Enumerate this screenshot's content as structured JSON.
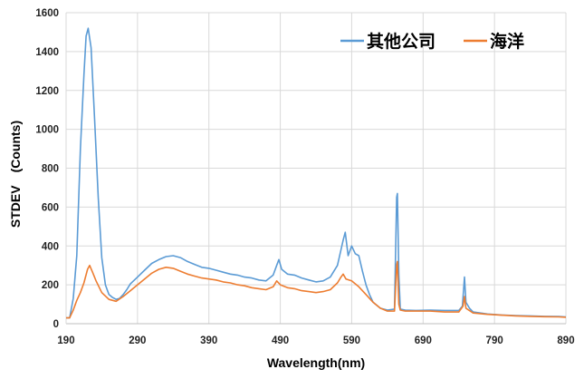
{
  "chart_data": {
    "type": "line",
    "title": "",
    "xlabel": "Wavelength(nm)",
    "ylabel": "STDEV　(Counts)",
    "xlim": [
      190,
      890
    ],
    "ylim": [
      0,
      1600
    ],
    "xticks": [
      190,
      290,
      390,
      490,
      590,
      690,
      790,
      890
    ],
    "yticks": [
      0,
      200,
      400,
      600,
      800,
      1000,
      1200,
      1400,
      1600
    ],
    "grid": true,
    "legend_position": "top-right",
    "series": [
      {
        "name": "其他公司",
        "color": "#5b9bd5",
        "points": [
          [
            190,
            30
          ],
          [
            195,
            30
          ],
          [
            200,
            130
          ],
          [
            205,
            350
          ],
          [
            210,
            900
          ],
          [
            215,
            1280
          ],
          [
            218,
            1480
          ],
          [
            221,
            1520
          ],
          [
            225,
            1420
          ],
          [
            230,
            1050
          ],
          [
            235,
            650
          ],
          [
            240,
            340
          ],
          [
            245,
            200
          ],
          [
            250,
            150
          ],
          [
            255,
            135
          ],
          [
            260,
            125
          ],
          [
            265,
            130
          ],
          [
            270,
            150
          ],
          [
            275,
            175
          ],
          [
            280,
            205
          ],
          [
            290,
            240
          ],
          [
            300,
            275
          ],
          [
            310,
            310
          ],
          [
            320,
            330
          ],
          [
            330,
            345
          ],
          [
            340,
            350
          ],
          [
            350,
            340
          ],
          [
            360,
            320
          ],
          [
            370,
            305
          ],
          [
            380,
            290
          ],
          [
            390,
            285
          ],
          [
            400,
            275
          ],
          [
            410,
            265
          ],
          [
            420,
            255
          ],
          [
            430,
            250
          ],
          [
            440,
            240
          ],
          [
            450,
            235
          ],
          [
            460,
            225
          ],
          [
            470,
            220
          ],
          [
            480,
            250
          ],
          [
            485,
            300
          ],
          [
            488,
            330
          ],
          [
            492,
            280
          ],
          [
            500,
            255
          ],
          [
            510,
            250
          ],
          [
            520,
            235
          ],
          [
            530,
            225
          ],
          [
            540,
            215
          ],
          [
            550,
            220
          ],
          [
            560,
            240
          ],
          [
            570,
            300
          ],
          [
            575,
            380
          ],
          [
            578,
            430
          ],
          [
            581,
            470
          ],
          [
            585,
            350
          ],
          [
            590,
            400
          ],
          [
            595,
            360
          ],
          [
            600,
            350
          ],
          [
            605,
            270
          ],
          [
            610,
            200
          ],
          [
            615,
            150
          ],
          [
            620,
            110
          ],
          [
            630,
            80
          ],
          [
            640,
            70
          ],
          [
            650,
            75
          ],
          [
            653,
            650
          ],
          [
            654,
            670
          ],
          [
            656,
            250
          ],
          [
            658,
            75
          ],
          [
            665,
            70
          ],
          [
            680,
            68
          ],
          [
            700,
            70
          ],
          [
            720,
            68
          ],
          [
            740,
            68
          ],
          [
            745,
            90
          ],
          [
            748,
            240
          ],
          [
            750,
            110
          ],
          [
            755,
            80
          ],
          [
            760,
            60
          ],
          [
            780,
            50
          ],
          [
            800,
            45
          ],
          [
            820,
            42
          ],
          [
            840,
            40
          ],
          [
            860,
            38
          ],
          [
            880,
            37
          ],
          [
            890,
            35
          ]
        ]
      },
      {
        "name": "海洋",
        "color": "#ed7d31",
        "points": [
          [
            190,
            30
          ],
          [
            195,
            30
          ],
          [
            200,
            70
          ],
          [
            205,
            120
          ],
          [
            210,
            160
          ],
          [
            215,
            210
          ],
          [
            220,
            280
          ],
          [
            223,
            300
          ],
          [
            227,
            265
          ],
          [
            232,
            220
          ],
          [
            240,
            160
          ],
          [
            250,
            125
          ],
          [
            260,
            115
          ],
          [
            270,
            140
          ],
          [
            280,
            170
          ],
          [
            290,
            200
          ],
          [
            300,
            230
          ],
          [
            310,
            260
          ],
          [
            320,
            280
          ],
          [
            330,
            290
          ],
          [
            340,
            285
          ],
          [
            350,
            270
          ],
          [
            360,
            255
          ],
          [
            370,
            245
          ],
          [
            380,
            235
          ],
          [
            390,
            230
          ],
          [
            400,
            225
          ],
          [
            410,
            215
          ],
          [
            420,
            210
          ],
          [
            430,
            200
          ],
          [
            440,
            195
          ],
          [
            450,
            185
          ],
          [
            460,
            180
          ],
          [
            470,
            175
          ],
          [
            480,
            190
          ],
          [
            485,
            220
          ],
          [
            490,
            200
          ],
          [
            500,
            185
          ],
          [
            510,
            180
          ],
          [
            520,
            170
          ],
          [
            530,
            165
          ],
          [
            540,
            160
          ],
          [
            550,
            165
          ],
          [
            560,
            175
          ],
          [
            570,
            210
          ],
          [
            575,
            240
          ],
          [
            578,
            255
          ],
          [
            582,
            230
          ],
          [
            590,
            220
          ],
          [
            600,
            190
          ],
          [
            610,
            150
          ],
          [
            620,
            110
          ],
          [
            630,
            80
          ],
          [
            640,
            65
          ],
          [
            650,
            65
          ],
          [
            653,
            300
          ],
          [
            654,
            320
          ],
          [
            656,
            100
          ],
          [
            658,
            70
          ],
          [
            665,
            65
          ],
          [
            680,
            65
          ],
          [
            700,
            65
          ],
          [
            720,
            60
          ],
          [
            740,
            60
          ],
          [
            746,
            90
          ],
          [
            748,
            140
          ],
          [
            750,
            80
          ],
          [
            760,
            55
          ],
          [
            780,
            48
          ],
          [
            800,
            44
          ],
          [
            820,
            40
          ],
          [
            840,
            38
          ],
          [
            860,
            36
          ],
          [
            880,
            35
          ],
          [
            890,
            33
          ]
        ]
      }
    ]
  }
}
